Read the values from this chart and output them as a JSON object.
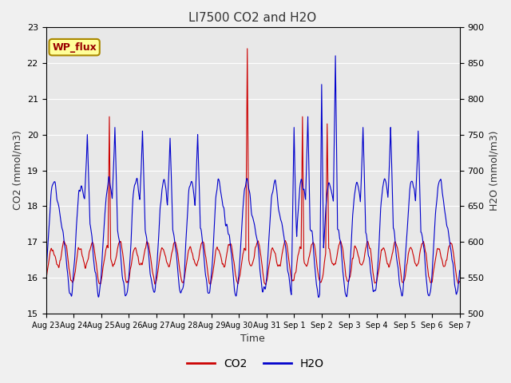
{
  "title": "LI7500 CO2 and H2O",
  "xlabel": "Time",
  "ylabel_left": "CO2 (mmol/m3)",
  "ylabel_right": "H2O (mmol/m3)",
  "ylim_left": [
    15.0,
    23.0
  ],
  "ylim_right": [
    500,
    900
  ],
  "co2_color": "#cc0000",
  "h2o_color": "#0000cc",
  "co2_linewidth": 0.8,
  "h2o_linewidth": 0.8,
  "bg_color": "#f0f0f0",
  "plot_bg": "#e8e8e8",
  "annotation_text": "WP_flux",
  "annotation_bg": "#ffff99",
  "annotation_edge": "#aa8800",
  "annotation_text_color": "#990000",
  "xtick_labels": [
    "Aug 23",
    "Aug 24",
    "Aug 25",
    "Aug 26",
    "Aug 27",
    "Aug 28",
    "Aug 29",
    "Aug 30",
    "Aug 31",
    "Sep 1",
    "Sep 2",
    "Sep 3",
    "Sep 4",
    "Sep 5",
    "Sep 6",
    "Sep 7"
  ],
  "n_points": 2160,
  "legend_co2": "CO2",
  "legend_h2o": "H2O",
  "figsize": [
    6.4,
    4.8
  ],
  "dpi": 100
}
